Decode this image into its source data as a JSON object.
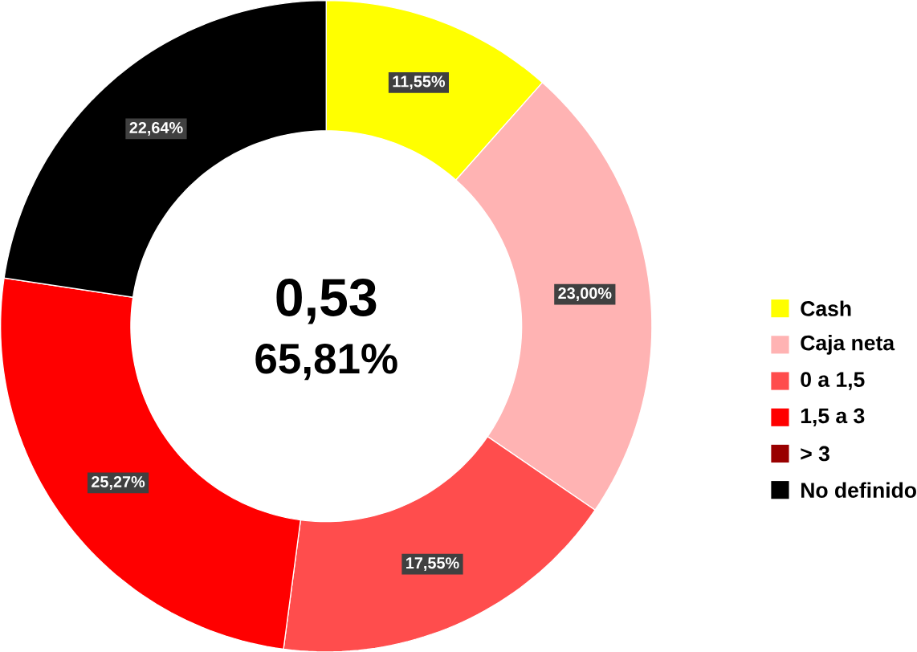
{
  "chart_data": {
    "type": "donut",
    "categories": [
      "Cash",
      "Caja neta",
      "0 a 1,5",
      "1,5 a 3",
      "> 3",
      "No definido"
    ],
    "values": [
      11.55,
      23.0,
      17.55,
      25.27,
      0,
      22.64
    ],
    "value_labels": [
      "11,55%",
      "23,00%",
      "17,55%",
      "25,27%",
      null,
      "22,64%"
    ],
    "colors": [
      "#ffff00",
      "#ffb3b3",
      "#ff4d4d",
      "#ff0000",
      "#990000",
      "#000000"
    ],
    "annotations": [
      "0,53",
      "65,81%"
    ],
    "legend": "right"
  }
}
